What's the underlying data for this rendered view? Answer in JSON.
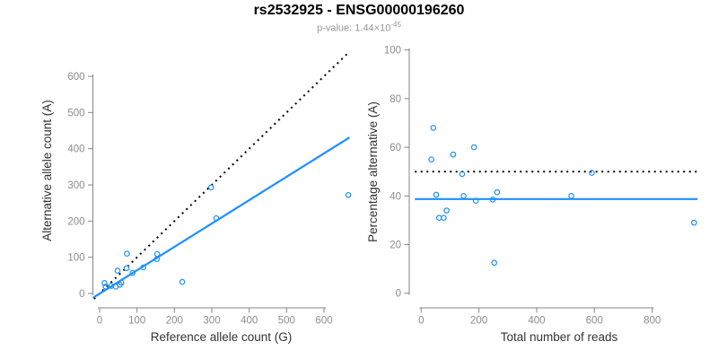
{
  "header": {
    "title": "rs2532925 - ENSG00000196260",
    "p_value_base": "p-value: 1.44×10",
    "p_value_exponent": "-45"
  },
  "colors": {
    "accent_blue": "#1E90FF",
    "line_black": "#000000",
    "axis_gray": "#858585",
    "tick_label_gray": "#8c8c8c",
    "axis_title_color": "#333333",
    "subtitle_gray": "#979797"
  },
  "chart_data": [
    {
      "type": "scatter",
      "title": "rs2532925 - ENSG00000196260",
      "subtitle": "p-value: 1.44×10^-45",
      "xlabel": "Reference allele count (G)",
      "ylabel": "Alternative allele count (A)",
      "x_ticks": [
        0,
        100,
        200,
        300,
        400,
        500,
        600
      ],
      "y_ticks": [
        0,
        100,
        200,
        300,
        400,
        500,
        600
      ],
      "xlim": [
        -20,
        670
      ],
      "ylim": [
        -40,
        690
      ],
      "grid": false,
      "legend": "none",
      "points": [
        [
          13,
          29
        ],
        [
          16,
          19
        ],
        [
          31,
          21
        ],
        [
          43,
          19
        ],
        [
          54,
          24
        ],
        [
          58,
          30
        ],
        [
          48,
          63
        ],
        [
          72,
          70
        ],
        [
          73,
          110
        ],
        [
          88,
          57
        ],
        [
          117,
          72
        ],
        [
          153,
          95
        ],
        [
          154,
          109
        ],
        [
          221,
          32
        ],
        [
          298,
          293
        ],
        [
          312,
          208
        ],
        [
          665,
          272
        ]
      ],
      "lines": [
        {
          "name": "identity-line",
          "x1": -15,
          "y1": -15,
          "x2": 668,
          "y2": 668,
          "style": "dotted",
          "color": "#000000",
          "width": 2
        },
        {
          "name": "regression-line",
          "x1": -18,
          "y1": -12,
          "x2": 668,
          "y2": 431,
          "style": "solid",
          "color": "#1E90FF",
          "width": 2.2
        }
      ]
    },
    {
      "type": "scatter",
      "xlabel": "Total number of reads",
      "ylabel": "Percentage alternative (A)",
      "x_ticks": [
        0,
        200,
        400,
        600,
        800
      ],
      "y_ticks": [
        0,
        20,
        40,
        60,
        80,
        100
      ],
      "xlim": [
        -40,
        990
      ],
      "ylim": [
        -6,
        106
      ],
      "grid": false,
      "legend": "none",
      "points": [
        [
          42,
          68
        ],
        [
          35,
          55
        ],
        [
          52,
          40.5
        ],
        [
          62,
          31
        ],
        [
          78,
          31
        ],
        [
          88,
          34
        ],
        [
          111,
          57
        ],
        [
          142,
          49
        ],
        [
          147,
          40
        ],
        [
          183,
          60
        ],
        [
          189,
          38
        ],
        [
          248,
          38.5
        ],
        [
          253,
          12.5
        ],
        [
          263,
          41.5
        ],
        [
          520,
          40
        ],
        [
          591,
          49.5
        ],
        [
          945,
          29
        ]
      ],
      "lines": [
        {
          "name": "expected-50pct-line",
          "x1": -22,
          "y1": 50,
          "x2": 957,
          "y2": 50,
          "style": "dotted",
          "color": "#000000",
          "width": 2
        },
        {
          "name": "mean-percentage-line",
          "x1": -22,
          "y1": 38.7,
          "x2": 957,
          "y2": 38.7,
          "style": "solid",
          "color": "#1E90FF",
          "width": 2.2
        }
      ]
    }
  ]
}
